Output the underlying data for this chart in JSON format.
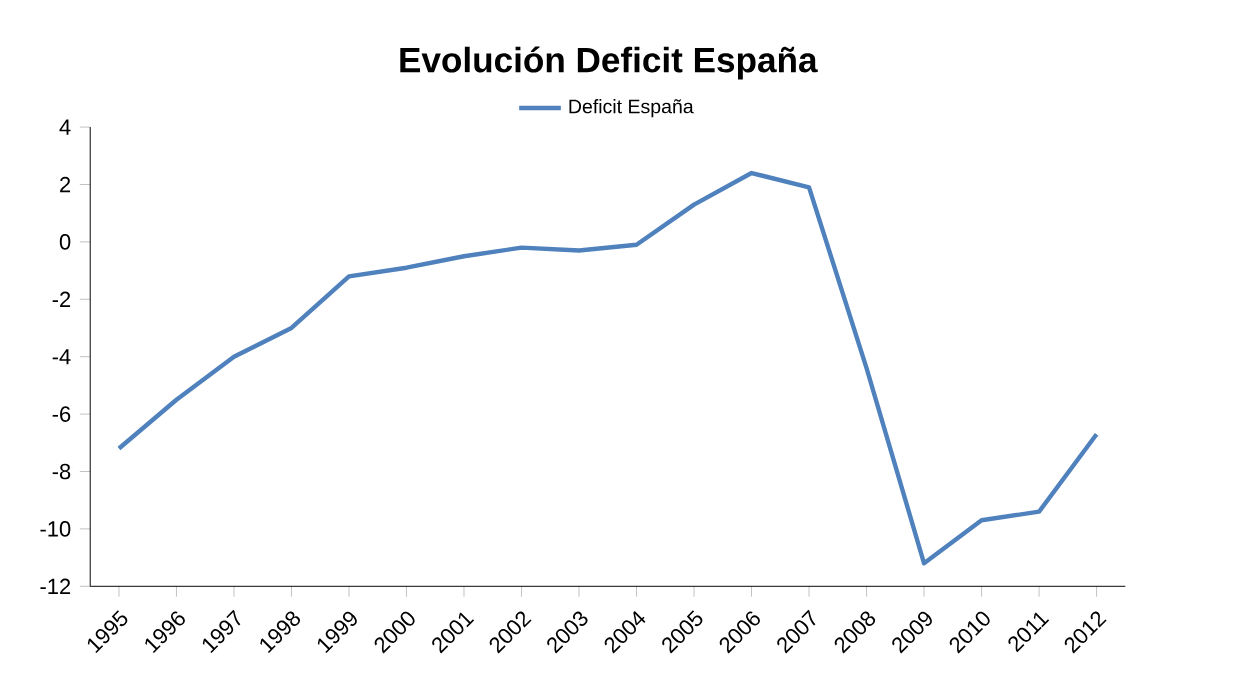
{
  "chart_data": {
    "type": "line",
    "title": "Evolución Deficit  España",
    "categories": [
      "1995",
      "1996",
      "1997",
      "1998",
      "1999",
      "2000",
      "2001",
      "2002",
      "2003",
      "2004",
      "2005",
      "2006",
      "2007",
      "2008",
      "2009",
      "2010",
      "2011",
      "2012"
    ],
    "series": [
      {
        "name": "Deficit  España",
        "color": "#4f81bd",
        "values": [
          -7.2,
          -5.5,
          -4.0,
          -3.0,
          -1.2,
          -0.9,
          -0.5,
          -0.2,
          -0.3,
          -0.1,
          1.3,
          2.4,
          1.9,
          -4.4,
          -11.2,
          -9.7,
          -9.4,
          -6.7
        ]
      }
    ],
    "ylim": [
      -12,
      4
    ],
    "yticks": [
      -12,
      -10,
      -8,
      -6,
      -4,
      -2,
      0,
      2,
      4
    ],
    "legend": "top",
    "grid": false,
    "marker": "none",
    "line_style": "solid"
  }
}
